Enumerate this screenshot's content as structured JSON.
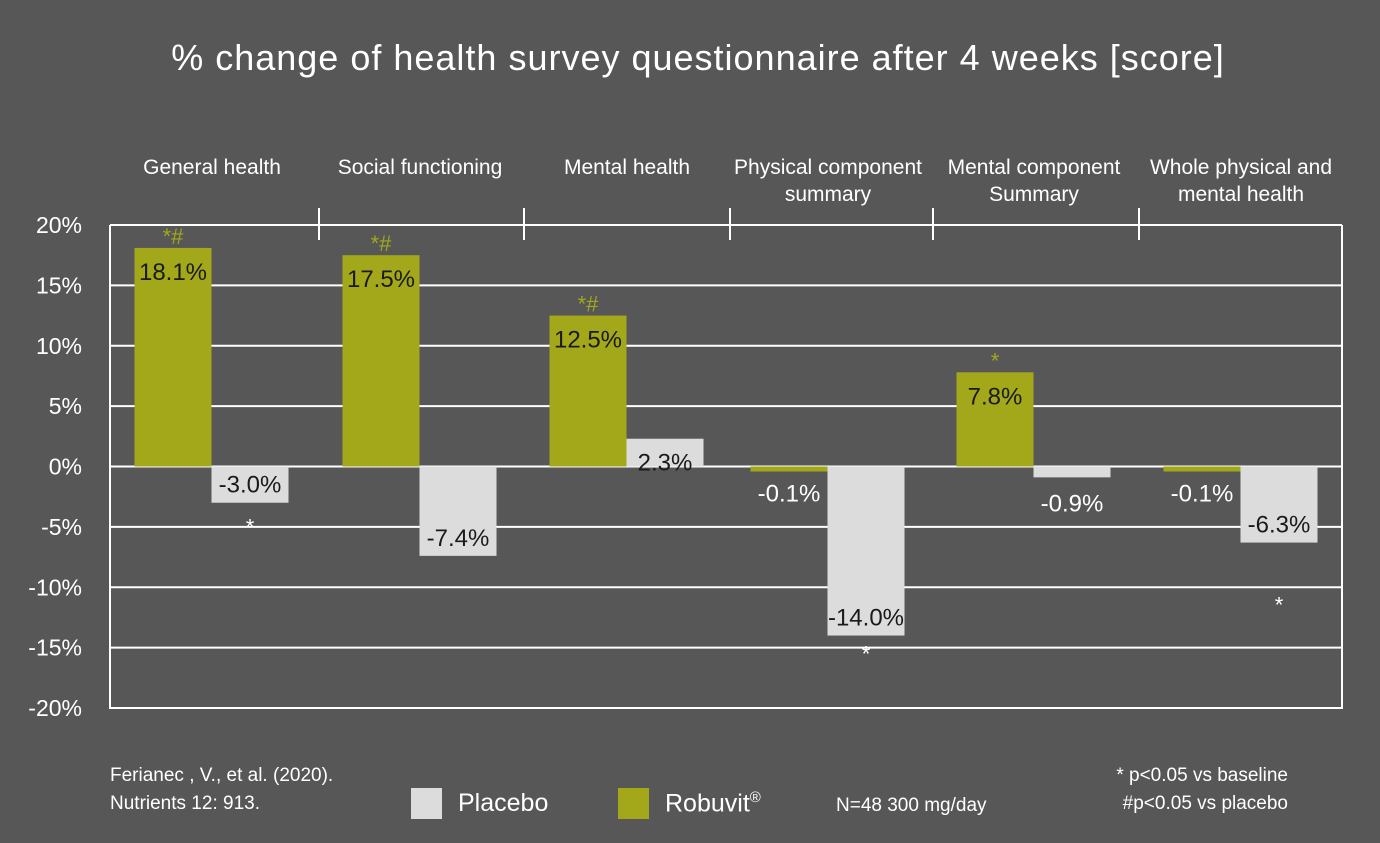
{
  "colors": {
    "background": "#575757",
    "robuvit": "#a2a81a",
    "placebo": "#dcdcdc",
    "grid": "#ffffff"
  },
  "chart_data": {
    "type": "bar",
    "title": "% change of health survey questionnaire after 4 weeks [score]",
    "categories": [
      [
        "General health"
      ],
      [
        "Social functioning"
      ],
      [
        "Mental health"
      ],
      [
        "Physical component",
        "summary"
      ],
      [
        "Mental component",
        "Summary"
      ],
      [
        "Whole physical and",
        "mental health"
      ]
    ],
    "series": [
      {
        "name": "Robuvit®",
        "color": "#a2a81a",
        "values": [
          18.1,
          17.5,
          12.5,
          -0.1,
          7.8,
          -0.1
        ],
        "labels": [
          "18.1%",
          "17.5%",
          "12.5%",
          "-0.1%",
          "7.8%",
          "-0.1%"
        ],
        "markers": [
          "*#",
          "*#",
          "*#",
          "",
          "*",
          ""
        ]
      },
      {
        "name": "Placebo",
        "color": "#dcdcdc",
        "values": [
          -3.0,
          -7.4,
          2.3,
          -14.0,
          -0.9,
          -6.3
        ],
        "labels": [
          "-3.0%",
          "-7.4%",
          "2.3%",
          "-14.0%",
          "-0.9%",
          "-6.3%"
        ],
        "markers": [
          "*",
          "",
          "",
          "*",
          "",
          "*"
        ]
      }
    ],
    "ylim": [
      -20,
      20
    ],
    "yticks": [
      20,
      15,
      10,
      5,
      0,
      -5,
      -10,
      -15,
      -20
    ],
    "ytick_labels": [
      "20%",
      "15%",
      "10%",
      "5%",
      "0%",
      "-5%",
      "-10%",
      "-15%",
      "-20%"
    ],
    "grid": true,
    "legend_placement": "bottom"
  },
  "footer": {
    "citation_line1": "Ferianec , V., et al. (2020).",
    "citation_line2": "Nutrients 12: 913.",
    "legend_placebo": "Placebo",
    "legend_robuvit": "Robuvit",
    "legend_robuvit_mark": "®",
    "dose_note": "N=48 300 mg/day",
    "note_baseline": "* p<0.05 vs baseline",
    "note_placebo": "#p<0.05 vs placebo"
  }
}
